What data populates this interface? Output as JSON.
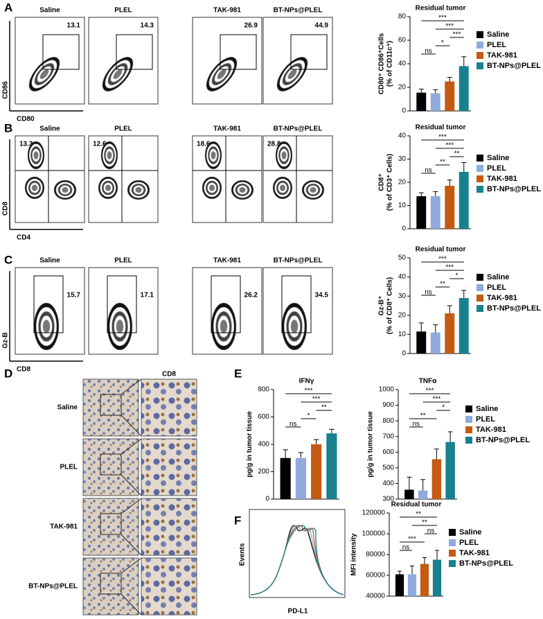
{
  "letters": [
    "A",
    "B",
    "C",
    "D",
    "E",
    "F"
  ],
  "flow": [
    {
      "x_label": "CD80",
      "y_label": "CD86",
      "panels": [
        {
          "name": "Saline",
          "percent": 13.1
        },
        {
          "name": "PLEL",
          "percent": 14.3
        },
        {
          "name": "TAK-981",
          "percent": 26.9
        },
        {
          "name": "BT-NPs@PLEL",
          "percent": 44.9
        }
      ]
    },
    {
      "x_label": "CD4",
      "y_label": "CD8",
      "panels": [
        {
          "name": "Saline",
          "percent": 13.3
        },
        {
          "name": "PLEL",
          "percent": 12.6
        },
        {
          "name": "TAK-981",
          "percent": 18.6
        },
        {
          "name": "BT-NPs@PLEL",
          "percent": 28.8
        }
      ]
    },
    {
      "x_label": "CD8",
      "y_label": "Gz-B",
      "panels": [
        {
          "name": "Saline",
          "percent": 15.7
        },
        {
          "name": "PLEL",
          "percent": 17.1
        },
        {
          "name": "TAK-981",
          "percent": 26.2
        },
        {
          "name": "BT-NPs@PLEL",
          "percent": 34.5
        }
      ]
    }
  ],
  "ihc": {
    "title": "CD8",
    "rows": [
      "Saline",
      "PLEL",
      "TAK-981",
      "BT-NPs@PLEL"
    ]
  },
  "histogram": {
    "x_label": "PD-L1",
    "y_label": "Events"
  },
  "chart_data": [
    {
      "type": "bar",
      "title": "Residual tumor",
      "ylabel": [
        "CD80⁺ CD86⁺Cells",
        "(% of CD11c⁺)"
      ],
      "legend": true,
      "categories": [
        "Saline",
        "PLEL",
        "TAK-981",
        "BT-NPs@PLEL"
      ],
      "colors": [
        "#000000",
        "#8faadc",
        "#c55a11",
        "#17818f"
      ],
      "values": [
        15.5,
        15,
        25,
        38
      ],
      "errors": [
        3,
        3,
        3.5,
        8
      ],
      "ylim": [
        0,
        80
      ],
      "yticks": [
        0,
        20,
        40,
        60,
        80
      ],
      "comparisons": [
        {
          "from": 0,
          "to": 1,
          "label": "ns"
        },
        {
          "from": 1,
          "to": 2,
          "label": "*"
        },
        {
          "from": 2,
          "to": 3,
          "label": "***"
        },
        {
          "from": 1,
          "to": 3,
          "label": "***"
        },
        {
          "from": 0,
          "to": 3,
          "label": "***"
        }
      ]
    },
    {
      "type": "bar",
      "title": "Residual tumor",
      "ylabel": [
        "CD8⁺",
        "(% of CD3⁺ Cells)"
      ],
      "legend": true,
      "categories": [
        "Saline",
        "PLEL",
        "TAK-981",
        "BT-NPs@PLEL"
      ],
      "colors": [
        "#000000",
        "#8faadc",
        "#c55a11",
        "#17818f"
      ],
      "values": [
        14,
        14,
        18.5,
        24.5
      ],
      "errors": [
        1.5,
        2,
        2.5,
        4
      ],
      "ylim": [
        0,
        40
      ],
      "yticks": [
        0,
        10,
        20,
        30,
        40
      ],
      "comparisons": [
        {
          "from": 0,
          "to": 1,
          "label": "ns"
        },
        {
          "from": 1,
          "to": 2,
          "label": "**"
        },
        {
          "from": 2,
          "to": 3,
          "label": "**"
        },
        {
          "from": 1,
          "to": 3,
          "label": "***"
        },
        {
          "from": 0,
          "to": 3,
          "label": "***"
        }
      ]
    },
    {
      "type": "bar",
      "title": "Residual tumor",
      "ylabel": [
        "Gz-B⁺",
        "(% of CD8⁺ Cells)"
      ],
      "legend": true,
      "categories": [
        "Saline",
        "PLEL",
        "TAK-981",
        "BT-NPs@PLEL"
      ],
      "colors": [
        "#000000",
        "#8faadc",
        "#c55a11",
        "#17818f"
      ],
      "values": [
        11.5,
        11,
        21,
        29
      ],
      "errors": [
        4.5,
        4,
        4,
        4
      ],
      "ylim": [
        0,
        50
      ],
      "yticks": [
        0,
        10,
        20,
        30,
        40,
        50
      ],
      "comparisons": [
        {
          "from": 0,
          "to": 1,
          "label": "ns"
        },
        {
          "from": 1,
          "to": 2,
          "label": "**"
        },
        {
          "from": 2,
          "to": 3,
          "label": "*"
        },
        {
          "from": 1,
          "to": 3,
          "label": "***"
        },
        {
          "from": 0,
          "to": 3,
          "label": "***"
        }
      ]
    },
    {
      "type": "bar",
      "title": "IFNγ",
      "ylabel": "pg/g in tumor tissue",
      "legend": false,
      "colors": [
        "#000000",
        "#8faadc",
        "#c55a11",
        "#17818f"
      ],
      "values": [
        300,
        300,
        400,
        480
      ],
      "errors": [
        60,
        40,
        35,
        30
      ],
      "ylim": [
        0,
        800
      ],
      "yticks": [
        0,
        200,
        400,
        600,
        800
      ],
      "comparisons": [
        {
          "from": 0,
          "to": 1,
          "label": "ns"
        },
        {
          "from": 1,
          "to": 2,
          "label": "*"
        },
        {
          "from": 2,
          "to": 3,
          "label": "**"
        },
        {
          "from": 1,
          "to": 3,
          "label": "***"
        },
        {
          "from": 0,
          "to": 3,
          "label": "***"
        }
      ]
    },
    {
      "type": "bar",
      "title": "TNFα",
      "ylabel": "pg/g in tumor tissue",
      "legend": true,
      "categories": [
        "Saline",
        "PLEL",
        "TAK-981",
        "BT-NPs@PLEL"
      ],
      "colors": [
        "#000000",
        "#8faadc",
        "#c55a11",
        "#17818f"
      ],
      "values": [
        360,
        355,
        555,
        665
      ],
      "errors": [
        80,
        70,
        65,
        65
      ],
      "ylim": [
        300,
        1000
      ],
      "yticks": [
        300,
        400,
        500,
        600,
        700,
        800,
        900,
        1000
      ],
      "comparisons": [
        {
          "from": 0,
          "to": 1,
          "label": "ns"
        },
        {
          "from": 0,
          "to": 2,
          "label": "**"
        },
        {
          "from": 2,
          "to": 3,
          "label": "*"
        },
        {
          "from": 1,
          "to": 3,
          "label": "***"
        },
        {
          "from": 0,
          "to": 3,
          "label": "***"
        }
      ]
    },
    {
      "type": "bar",
      "title": "Residual tumor",
      "ylabel": "MFI intensity",
      "legend": true,
      "categories": [
        "Saline",
        "PLEL",
        "TAK-981",
        "BT-NPs@PLEL"
      ],
      "colors": [
        "#000000",
        "#8faadc",
        "#c55a11",
        "#17818f"
      ],
      "values": [
        61000,
        61000,
        71000,
        75000
      ],
      "errors": [
        3000,
        8000,
        6000,
        9000
      ],
      "ylim": [
        40000,
        120000
      ],
      "yticks": [
        40000,
        60000,
        80000,
        100000,
        120000
      ],
      "comparisons": [
        {
          "from": 0,
          "to": 1,
          "label": "ns"
        },
        {
          "from": 0,
          "to": 2,
          "label": "***"
        },
        {
          "from": 2,
          "to": 3,
          "label": "ns"
        },
        {
          "from": 1,
          "to": 3,
          "label": "**"
        },
        {
          "from": 0,
          "to": 3,
          "label": "**"
        }
      ]
    }
  ]
}
